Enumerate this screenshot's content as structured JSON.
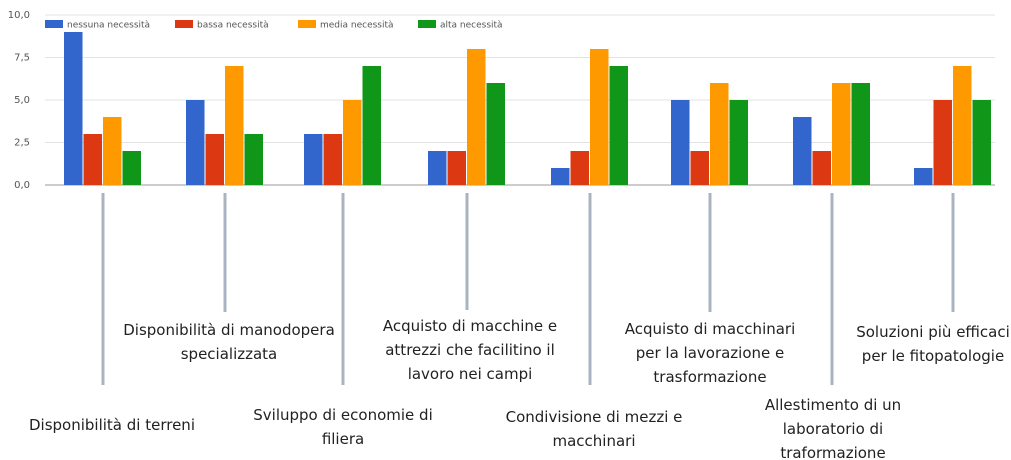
{
  "chart_data": {
    "type": "bar",
    "categories": [
      "Disponibilità di terreni",
      "Disponibilità di manodopera specializzata",
      "Sviluppo di economie di filiera",
      "Acquisto di macchine e attrezzi che facilitino il lavoro nei campi",
      "Condivisione di mezzi e macchinari",
      "Acquisto di macchinari per la lavorazione e trasformazione",
      "Allestimento di un laboratorio di traformazione",
      "Soluzioni più efficaci per le fitopatologie"
    ],
    "series": [
      {
        "name": "nessuna necessità",
        "color": "#3366cc",
        "values": [
          9,
          5,
          3,
          2,
          1,
          5,
          4,
          1
        ]
      },
      {
        "name": "bassa necessità",
        "color": "#dc3912",
        "values": [
          3,
          3,
          3,
          2,
          2,
          2,
          2,
          5
        ]
      },
      {
        "name": "media necessità",
        "color": "#ff9900",
        "values": [
          4,
          7,
          5,
          8,
          8,
          6,
          6,
          7
        ]
      },
      {
        "name": "alta necessità",
        "color": "#109618",
        "values": [
          2,
          3,
          7,
          6,
          7,
          5,
          6,
          5
        ]
      }
    ],
    "ylim": [
      0,
      10
    ],
    "yticks": [
      {
        "value": 0,
        "label": "0,0"
      },
      {
        "value": 2.5,
        "label": "2,5"
      },
      {
        "value": 5,
        "label": "5,0"
      },
      {
        "value": 7.5,
        "label": "7,5"
      },
      {
        "value": 10,
        "label": "10,0"
      }
    ],
    "grid": true,
    "legend": "top"
  }
}
